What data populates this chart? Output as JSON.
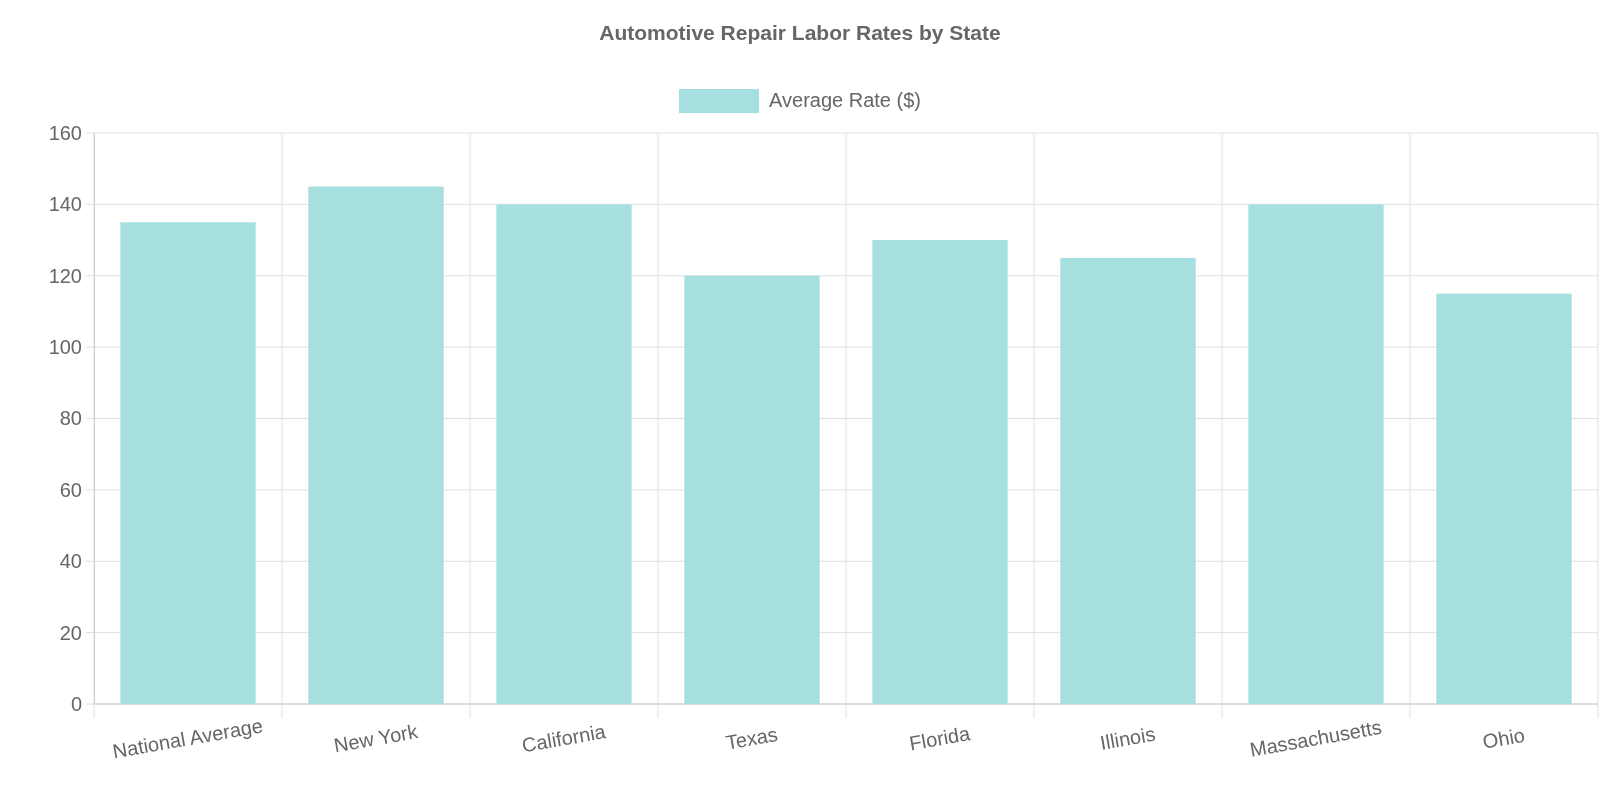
{
  "chart_data": {
    "type": "bar",
    "title": "Automotive Repair Labor Rates by State",
    "categories": [
      "National Average",
      "New York",
      "California",
      "Texas",
      "Florida",
      "Illinois",
      "Massachusetts",
      "Ohio"
    ],
    "series": [
      {
        "name": "Average Rate ($)",
        "color": "#a5dfdf",
        "values": [
          135,
          145,
          140,
          120,
          130,
          125,
          140,
          115
        ]
      }
    ],
    "ylim": [
      0,
      160
    ],
    "yticks": [
      0,
      20,
      40,
      60,
      80,
      100,
      120,
      140,
      160
    ],
    "grid": true,
    "legend": "top"
  }
}
